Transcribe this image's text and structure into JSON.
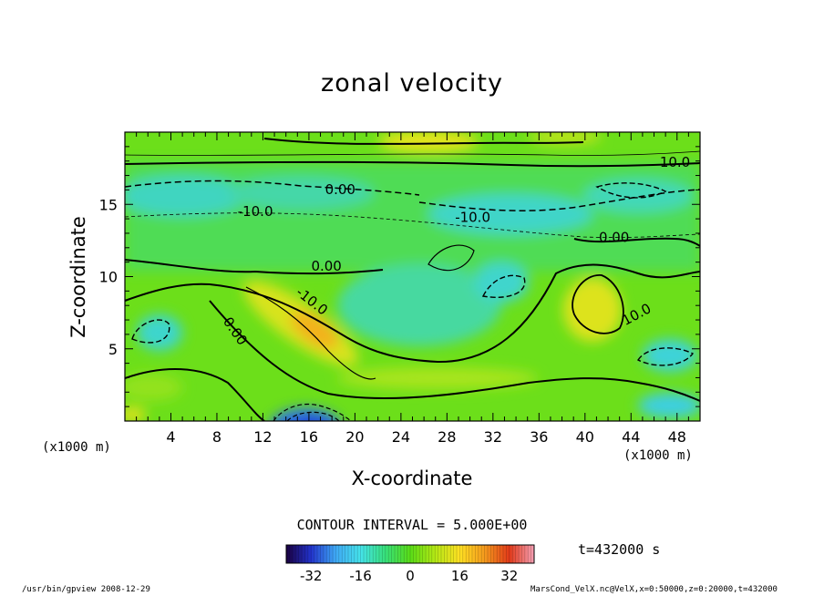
{
  "chart_data": {
    "type": "heatmap",
    "title": "zonal velocity",
    "xlabel": "X-coordinate",
    "ylabel": "Z-coordinate",
    "x_unit": "(x1000 m)",
    "xlim": [
      0,
      50
    ],
    "ylim": [
      0,
      20
    ],
    "x_ticks": [
      4,
      8,
      12,
      16,
      20,
      24,
      28,
      32,
      36,
      40,
      44,
      48
    ],
    "y_ticks": [
      5,
      10,
      15
    ],
    "contour_labels": [
      "10.0",
      "0.00",
      "-10.0",
      "-10.0",
      "0.00",
      "0.00",
      "-10.0",
      "0.00",
      "10.0"
    ],
    "contour_interval": "CONTOUR INTERVAL = 5.000E+00",
    "colorbar": {
      "range": [
        -40,
        40
      ],
      "ticks": [
        "-32",
        "-16",
        "0",
        "16",
        "32"
      ],
      "colors": [
        "#1a0040",
        "#2233cc",
        "#3fa9f5",
        "#45e3ea",
        "#37e07a",
        "#59dc17",
        "#b4e815",
        "#ffe023",
        "#f59a1d",
        "#e23a1a",
        "#f5a0b4"
      ]
    },
    "time_label": "t=432000 s",
    "grid": false
  },
  "footer": {
    "left": "/usr/bin/gpview  2008-12-29",
    "right": "MarsCond_VelX.nc@VelX,x=0:50000,z=0:20000,t=432000"
  }
}
